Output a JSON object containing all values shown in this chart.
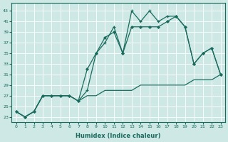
{
  "xlabel": "Humidex (Indice chaleur)",
  "bg_color": "#cde8e5",
  "line_color": "#1a6b5e",
  "xlim": [
    -0.5,
    23.5
  ],
  "ylim": [
    22,
    44.5
  ],
  "yticks": [
    23,
    25,
    27,
    29,
    31,
    33,
    35,
    37,
    39,
    41,
    43
  ],
  "xticks": [
    0,
    1,
    2,
    3,
    4,
    5,
    6,
    7,
    8,
    9,
    10,
    11,
    12,
    13,
    14,
    15,
    16,
    17,
    18,
    19,
    20,
    21,
    22,
    23
  ],
  "line1_x": [
    0,
    1,
    2,
    3,
    4,
    5,
    6,
    7,
    8,
    9,
    10,
    11,
    12,
    13,
    14,
    15,
    16,
    17,
    18,
    19,
    20,
    21,
    22,
    23
  ],
  "line1_y": [
    24,
    23,
    24,
    27,
    27,
    27,
    27,
    26,
    27,
    27,
    28,
    28,
    28,
    28,
    29,
    29,
    29,
    29,
    29,
    29,
    30,
    30,
    30,
    31
  ],
  "line2_x": [
    0,
    1,
    2,
    3,
    4,
    5,
    6,
    7,
    8,
    9,
    10,
    11,
    12,
    13,
    14,
    15,
    16,
    17,
    18,
    19,
    20,
    21,
    22,
    23
  ],
  "line2_y": [
    24,
    23,
    24,
    27,
    27,
    27,
    27,
    26,
    28,
    35,
    37,
    40,
    35,
    43,
    41,
    43,
    41,
    42,
    42,
    40,
    33,
    35,
    36,
    31
  ],
  "line3_x": [
    0,
    1,
    2,
    3,
    4,
    5,
    6,
    7,
    8,
    9,
    10,
    11,
    12,
    13,
    14,
    15,
    16,
    17,
    18,
    19,
    20,
    21,
    22,
    23
  ],
  "line3_y": [
    24,
    23,
    24,
    27,
    27,
    27,
    27,
    26,
    32,
    35,
    38,
    39,
    35,
    40,
    40,
    40,
    40,
    41,
    42,
    40,
    33,
    35,
    36,
    31
  ]
}
